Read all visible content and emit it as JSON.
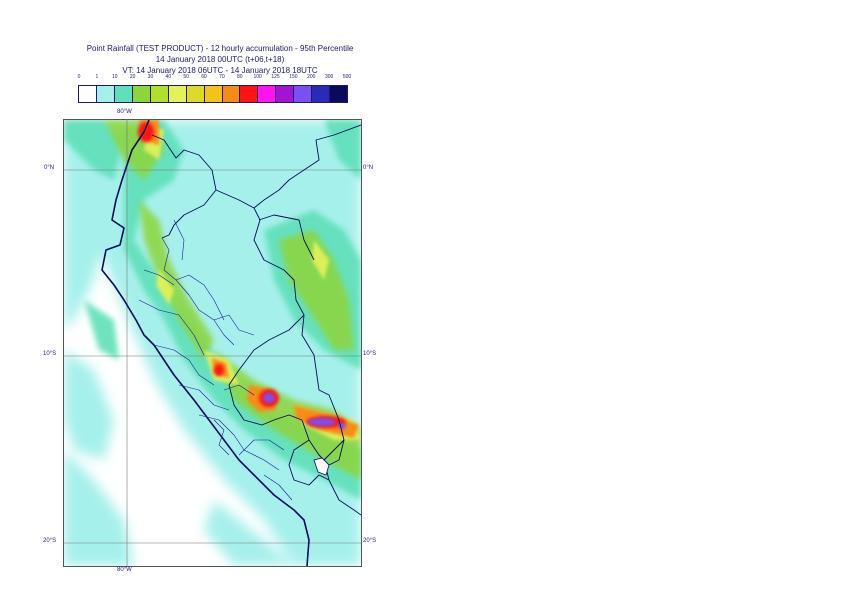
{
  "title": {
    "line1": "Point Rainfall (TEST PRODUCT) - 12 hourly accumulation - 95th Percentile",
    "line2": "14 January 2018 00UTC (t+06,t+18)",
    "line3": "VT: 14 January 2018 06UTC - 14 January 2018 18UTC"
  },
  "legend": {
    "labels": [
      "0",
      "1",
      "10",
      "20",
      "30",
      "40",
      "50",
      "60",
      "70",
      "80",
      "100",
      "125",
      "150",
      "200",
      "300",
      "500"
    ],
    "colors": [
      "#ffffff",
      "#a6f0ec",
      "#5ee0b8",
      "#8dd53a",
      "#b1e02a",
      "#e4f25a",
      "#dcdc28",
      "#f2c41a",
      "#f78c14",
      "#ff1414",
      "#ff14f0",
      "#a314d2",
      "#7a50f0",
      "#2a2ab4",
      "#0a0a5a"
    ]
  },
  "map": {
    "longitude_labels": {
      "top": "80°W",
      "bottom": "80°W"
    },
    "latitude_labels": [
      "0°N",
      "10°S",
      "20°S"
    ]
  }
}
